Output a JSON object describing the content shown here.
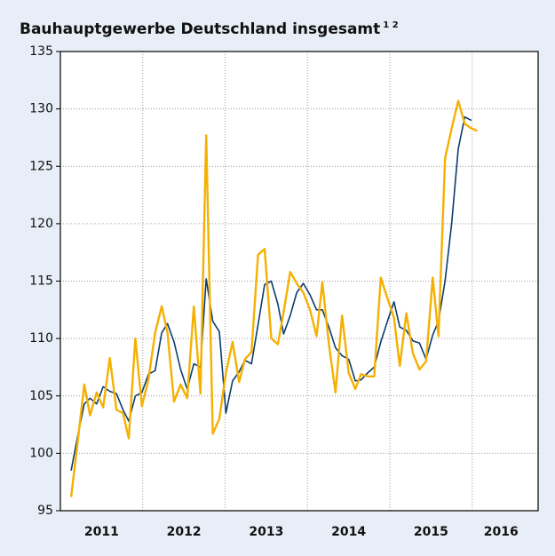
{
  "chart_data": {
    "type": "line",
    "title": "Bauhauptgewerbe Deutschland insgesamt",
    "title_superscript": "1 2",
    "x": [
      2011.13,
      2011.21,
      2011.29,
      2011.36,
      2011.44,
      2011.52,
      2011.6,
      2011.68,
      2011.76,
      2011.83,
      2011.91,
      2011.99,
      2012.07,
      2012.15,
      2012.23,
      2012.3,
      2012.38,
      2012.46,
      2012.54,
      2012.62,
      2012.7,
      2012.77,
      2012.85,
      2012.93,
      2013.01,
      2013.09,
      2013.17,
      2013.24,
      2013.32,
      2013.4,
      2013.48,
      2013.56,
      2013.64,
      2013.71,
      2013.79,
      2013.87,
      2013.95,
      2014.03,
      2014.11,
      2014.18,
      2014.26,
      2014.34,
      2014.42,
      2014.5,
      2014.58,
      2014.65,
      2014.73,
      2014.81,
      2014.89,
      2014.97,
      2015.05,
      2015.12,
      2015.2,
      2015.28,
      2015.36,
      2015.44,
      2015.52,
      2015.59,
      2015.67,
      2015.75,
      2015.83,
      2015.91,
      2015.99,
      2016.06
    ],
    "series": [
      {
        "color": "#f5b000",
        "values": [
          96.2,
          101,
          106,
          103.3,
          105.3,
          104,
          108.3,
          103.8,
          103.5,
          101.3,
          110,
          104.1,
          106.5,
          110.5,
          112.8,
          110.5,
          104.5,
          106,
          104.8,
          112.8,
          105.2,
          127.7,
          101.7,
          103,
          107,
          109.7,
          106.2,
          108.2,
          108.8,
          117.3,
          117.8,
          110,
          109.5,
          112.3,
          115.8,
          114.8,
          114,
          112.5,
          110.2,
          114.9,
          109.5,
          105.3,
          112,
          107,
          105.6,
          106.9,
          106.7,
          106.7,
          115.3,
          113.5,
          111.8,
          107.6,
          112.2,
          108.7,
          107.3,
          108,
          115.3,
          110.2,
          125.7,
          128.3,
          130.7,
          128.7,
          128.3,
          128.1
        ]
      },
      {
        "color": "#0b3c6e",
        "values": [
          98.5,
          101.5,
          104.3,
          104.8,
          104.3,
          105.8,
          105.4,
          105.2,
          103.8,
          102.8,
          105,
          105.3,
          106.9,
          107.2,
          110.5,
          111.3,
          109.7,
          107.3,
          105.6,
          107.8,
          107.5,
          115.2,
          111.5,
          110.6,
          103.5,
          106.3,
          107.1,
          108.1,
          107.8,
          111.2,
          114.7,
          115,
          113,
          110.4,
          112,
          114,
          114.8,
          113.8,
          112.5,
          112.5,
          111,
          109.2,
          108.5,
          108.2,
          106.3,
          106.4,
          107,
          107.5,
          109.7,
          111.5,
          113.2,
          111,
          110.7,
          109.8,
          109.6,
          108.2,
          110.3,
          111.5,
          115,
          120,
          126.5,
          129.3,
          129,
          null
        ]
      }
    ],
    "xlim": [
      2011,
      2016.8
    ],
    "xticks": [
      {
        "value": 2011.5,
        "label": "2011"
      },
      {
        "value": 2012.5,
        "label": "2012"
      },
      {
        "value": 2013.5,
        "label": "2013"
      },
      {
        "value": 2014.5,
        "label": "2014"
      },
      {
        "value": 2015.5,
        "label": "2015"
      },
      {
        "value": 2016.35,
        "label": "2016"
      }
    ],
    "xgrid": [
      2012,
      2013,
      2014,
      2015,
      2016
    ],
    "ylim": [
      95,
      135
    ],
    "yticks": [
      95,
      100,
      105,
      110,
      115,
      120,
      125,
      130,
      135
    ],
    "grid": true
  }
}
